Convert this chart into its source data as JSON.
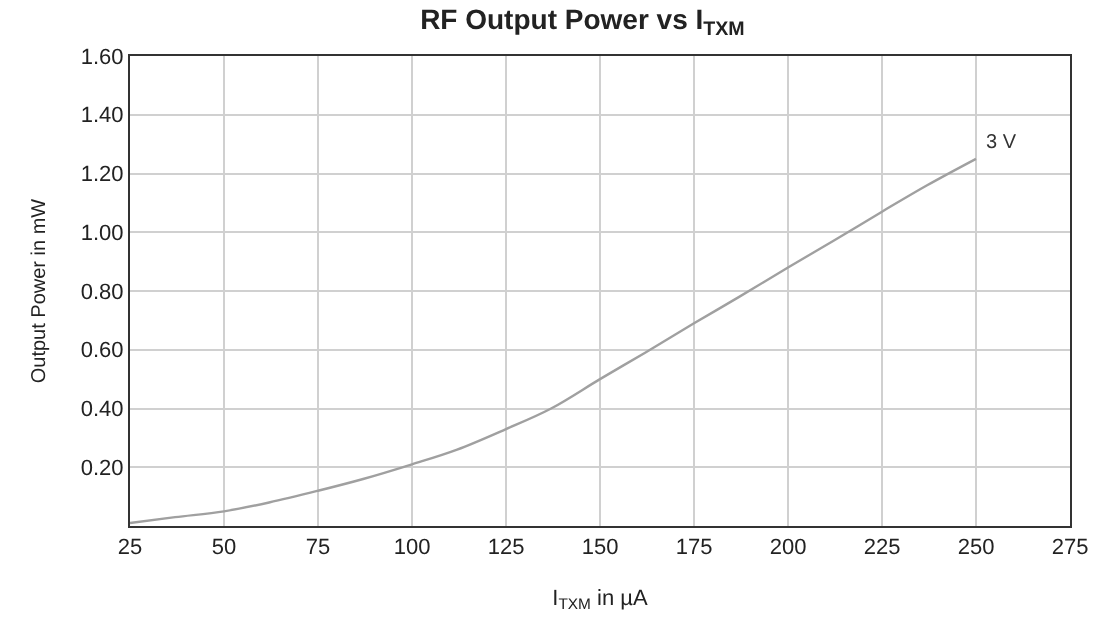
{
  "chart_data": {
    "type": "line",
    "title": "RF Output Power vs I$_{TXM}$",
    "xlabel": "I$_{TXM}$ in µA",
    "ylabel": "Output Power in mW",
    "x": [
      25,
      37,
      50,
      62,
      75,
      87,
      100,
      112,
      125,
      137,
      150,
      162,
      175,
      187,
      200,
      212,
      225,
      237,
      250
    ],
    "series": [
      {
        "name": "3 V",
        "color": "#a0a0a0",
        "values": [
          0.01,
          0.03,
          0.05,
          0.08,
          0.12,
          0.16,
          0.21,
          0.26,
          0.33,
          0.4,
          0.5,
          0.59,
          0.69,
          0.78,
          0.88,
          0.97,
          1.07,
          1.16,
          1.25
        ]
      }
    ],
    "xlim": [
      25,
      275
    ],
    "xticks": [
      25,
      50,
      75,
      100,
      125,
      150,
      175,
      200,
      225,
      250,
      275
    ],
    "ylim": [
      0,
      1.6
    ],
    "yticks": [
      {
        "value": 0,
        "label": null
      },
      {
        "value": 0.2,
        "label": "0.20"
      },
      {
        "value": 0.4,
        "label": "0.40"
      },
      {
        "value": 0.6,
        "label": "0.60"
      },
      {
        "value": 0.8,
        "label": "0.80"
      },
      {
        "value": 1.0,
        "label": "1.00"
      },
      {
        "value": 1.2,
        "label": "1.20"
      },
      {
        "value": 1.4,
        "label": "1.40"
      },
      {
        "value": 1.6,
        "label": "1.60"
      }
    ],
    "grid": true,
    "legend": false,
    "marker": "none",
    "line_style": "solid"
  }
}
